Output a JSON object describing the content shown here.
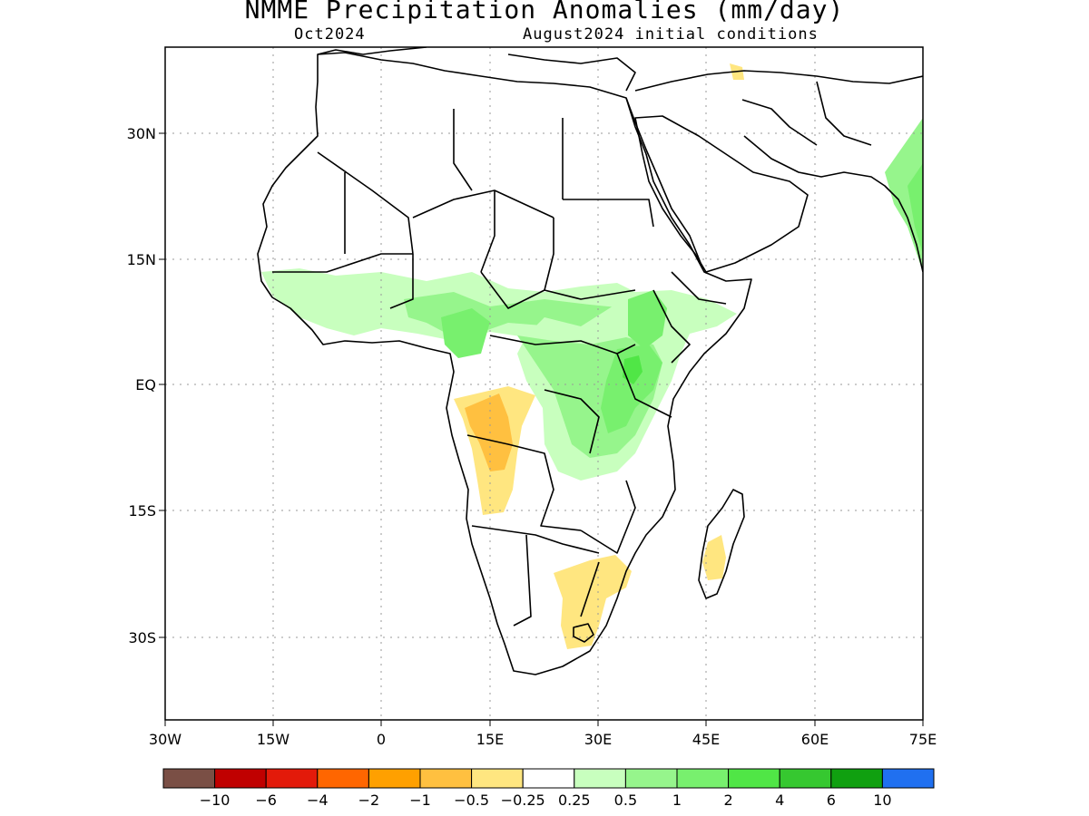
{
  "title": "NMME Precipitation Anomalies (mm/day)",
  "subtitle_left": "Oct2024",
  "subtitle_right": "August2024 initial conditions",
  "map": {
    "region": "Africa",
    "lon_range": [
      -30,
      75
    ],
    "lat_range": [
      -40,
      40
    ],
    "lat_ticks": [
      {
        "value": 30,
        "label": "30N"
      },
      {
        "value": 15,
        "label": "15N"
      },
      {
        "value": 0,
        "label": "EQ"
      },
      {
        "value": -15,
        "label": "15S"
      },
      {
        "value": -30,
        "label": "30S"
      }
    ],
    "lon_ticks": [
      {
        "value": -30,
        "label": "30W"
      },
      {
        "value": -15,
        "label": "15W"
      },
      {
        "value": 0,
        "label": "0"
      },
      {
        "value": 15,
        "label": "15E"
      },
      {
        "value": 30,
        "label": "30E"
      },
      {
        "value": 45,
        "label": "45E"
      },
      {
        "value": 60,
        "label": "60E"
      },
      {
        "value": 75,
        "label": "75E"
      }
    ],
    "grid": "dotted"
  },
  "colorbar": {
    "colors": [
      "#7a4f45",
      "#c00000",
      "#e31a0a",
      "#ff6600",
      "#ffa000",
      "#ffc040",
      "#ffe680",
      "#ffffff",
      "#c8ffbe",
      "#96f58c",
      "#78f06e",
      "#50e646",
      "#36c830",
      "#10a010",
      "#2070f0"
    ],
    "labels": [
      "-10",
      "-6",
      "-4",
      "-2",
      "-1",
      "-0.5",
      "-0.25",
      "0.25",
      "0.5",
      "1",
      "2",
      "4",
      "6",
      "10"
    ]
  }
}
